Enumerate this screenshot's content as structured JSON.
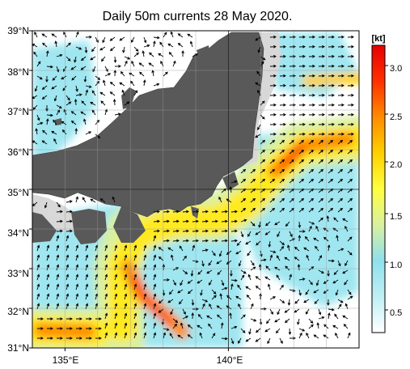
{
  "title": "Daily 50m currents 28 May 2020.",
  "map": {
    "lat_labels": [
      "39°N",
      "38°N",
      "37°N",
      "36°N",
      "35°N",
      "34°N",
      "33°N",
      "32°N",
      "31°N"
    ],
    "lon_labels": [
      "135°E",
      "140°E"
    ],
    "lat_range": [
      31,
      39
    ],
    "lon_range": [
      134,
      144
    ],
    "grid": true,
    "land_color": "#595959",
    "shelf_color": "#d8d8d8",
    "arrow_color": "#000000"
  },
  "colorbar": {
    "unit": "kt",
    "ticks": [
      "3.0",
      "2.5",
      "2.0",
      "1.5",
      "1.0",
      "0.5"
    ],
    "range": [
      0.3,
      3.2
    ],
    "colors": [
      "#ffffff",
      "#bfeff5",
      "#8fe0ec",
      "#d9f0a0",
      "#ffff40",
      "#ffd000",
      "#ff8c00",
      "#ff3000",
      "#e60000"
    ]
  }
}
